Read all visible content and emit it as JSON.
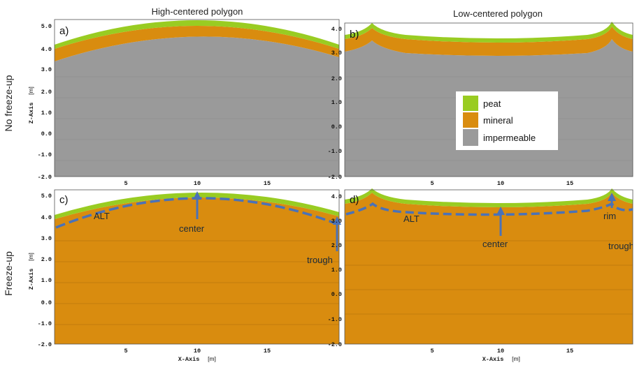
{
  "titles": {
    "high": "High-centered polygon",
    "low": "Low-centered polygon"
  },
  "rows": {
    "top": "No freeze-up",
    "bottom": "Freeze-up"
  },
  "axes": {
    "z_label": "Z-Axis",
    "x_label": "X-Axis",
    "unit": "[m]",
    "y_ticks": [
      "5.0",
      "4.0",
      "3.0",
      "2.0",
      "1.0",
      "0.0",
      "-1.0",
      "-2.0"
    ],
    "y_ticks_low": [
      "4.0",
      "3.0",
      "2.0",
      "1.0",
      "0.0",
      "-1.0",
      "-2.0"
    ],
    "x_ticks": [
      "5",
      "10",
      "15"
    ]
  },
  "panels": {
    "a": "a)",
    "b": "b)",
    "c": "c)",
    "d": "d)"
  },
  "legend": {
    "items": [
      {
        "label": "peat",
        "color": "#99cc22"
      },
      {
        "label": "mineral",
        "color": "#d98c0f"
      },
      {
        "label": "impermeable",
        "color": "#9a9a9a"
      }
    ]
  },
  "annotations": {
    "alt": "ALT",
    "center": "center",
    "trough": "trough",
    "rim": "rim"
  },
  "colors": {
    "peat": "#99cc22",
    "mineral": "#d98c0f",
    "impermeable": "#9a9a9a",
    "alt_line": "#4a72b8",
    "arrow": "#4a72b8"
  }
}
